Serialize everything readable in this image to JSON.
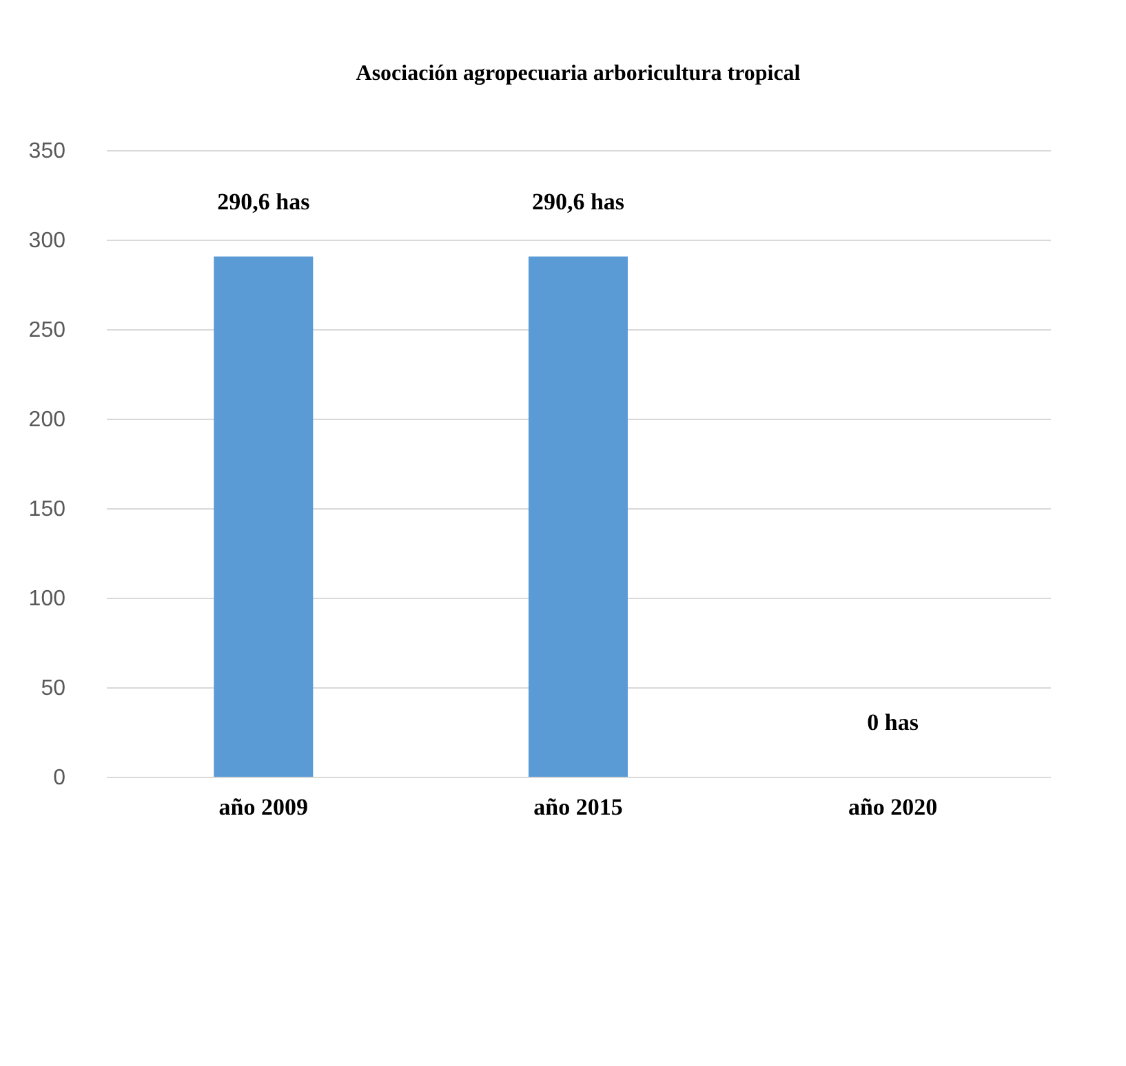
{
  "chart_data": {
    "type": "bar",
    "title": "Asociación agropecuaria arboricultura tropical",
    "categories": [
      "año 2009",
      "año 2015",
      "año 2020"
    ],
    "values": [
      290.6,
      290.6,
      0
    ],
    "value_labels": [
      "290,6 has",
      "290,6 has",
      "0 has"
    ],
    "color": "#5b9bd5",
    "ylim": [
      0,
      350
    ],
    "yticks": [
      0,
      50,
      100,
      150,
      200,
      250,
      300,
      350
    ],
    "grid": "y"
  }
}
